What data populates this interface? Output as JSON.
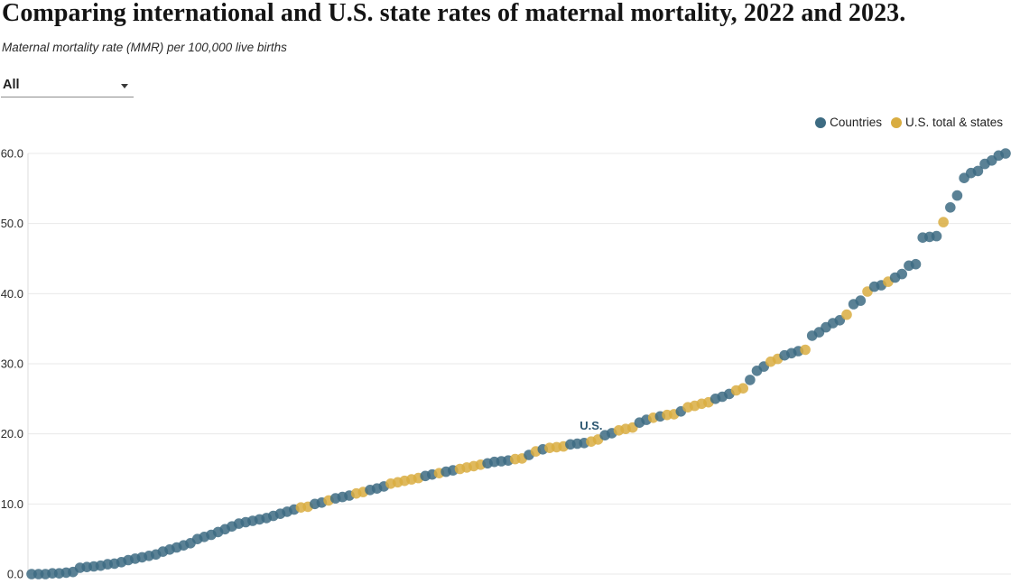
{
  "header": {
    "title": "Comparing international and U.S. state rates of maternal mortality, 2022 and 2023.",
    "subtitle": "Maternal mortality rate (MMR) per 100,000 live births"
  },
  "filter": {
    "value": "All"
  },
  "legend": [
    {
      "label": "Countries",
      "color": "#3d6b82",
      "key": "C"
    },
    {
      "label": "U.S. total & states",
      "color": "#d9ad41",
      "key": "U"
    }
  ],
  "chart_data": {
    "type": "scatter",
    "title": "Comparing international and U.S. state rates of maternal mortality, 2022 and 2023.",
    "xlabel": "",
    "ylabel": "Maternal mortality rate (MMR) per 100,000 live births",
    "ylim": [
      0,
      60
    ],
    "grid": true,
    "legend_position": "top-right",
    "yticks": [
      0,
      10,
      20,
      30,
      40,
      50,
      60
    ],
    "ytick_labels": [
      "0.0",
      "10.0",
      "20.0",
      "30.0",
      "40.0",
      "50.0",
      "60.0"
    ],
    "annotation": {
      "text": "U.S.",
      "point_index": 81
    },
    "series_note": "points sorted ascending by MMR; group C = Countries, U = U.S. total & states",
    "points": [
      [
        0,
        "C"
      ],
      [
        0,
        "C"
      ],
      [
        0,
        "C"
      ],
      [
        0.1,
        "C"
      ],
      [
        0.1,
        "C"
      ],
      [
        0.2,
        "C"
      ],
      [
        0.3,
        "C"
      ],
      [
        0.9,
        "C"
      ],
      [
        1,
        "C"
      ],
      [
        1.1,
        "C"
      ],
      [
        1.2,
        "C"
      ],
      [
        1.4,
        "C"
      ],
      [
        1.5,
        "C"
      ],
      [
        1.7,
        "C"
      ],
      [
        2,
        "C"
      ],
      [
        2.2,
        "C"
      ],
      [
        2.4,
        "C"
      ],
      [
        2.6,
        "C"
      ],
      [
        2.8,
        "C"
      ],
      [
        3.2,
        "C"
      ],
      [
        3.5,
        "C"
      ],
      [
        3.8,
        "C"
      ],
      [
        4.1,
        "C"
      ],
      [
        4.4,
        "C"
      ],
      [
        5,
        "C"
      ],
      [
        5.3,
        "C"
      ],
      [
        5.6,
        "C"
      ],
      [
        6,
        "C"
      ],
      [
        6.4,
        "C"
      ],
      [
        6.8,
        "C"
      ],
      [
        7.2,
        "C"
      ],
      [
        7.4,
        "C"
      ],
      [
        7.6,
        "C"
      ],
      [
        7.8,
        "C"
      ],
      [
        8,
        "C"
      ],
      [
        8.3,
        "C"
      ],
      [
        8.6,
        "C"
      ],
      [
        8.9,
        "C"
      ],
      [
        9.2,
        "C"
      ],
      [
        9.5,
        "U"
      ],
      [
        9.6,
        "U"
      ],
      [
        10,
        "C"
      ],
      [
        10.2,
        "C"
      ],
      [
        10.5,
        "U"
      ],
      [
        10.8,
        "C"
      ],
      [
        11,
        "C"
      ],
      [
        11.2,
        "C"
      ],
      [
        11.5,
        "U"
      ],
      [
        11.7,
        "U"
      ],
      [
        12,
        "C"
      ],
      [
        12.2,
        "C"
      ],
      [
        12.5,
        "C"
      ],
      [
        12.9,
        "U"
      ],
      [
        13.1,
        "U"
      ],
      [
        13.3,
        "U"
      ],
      [
        13.5,
        "U"
      ],
      [
        13.7,
        "U"
      ],
      [
        14,
        "C"
      ],
      [
        14.2,
        "C"
      ],
      [
        14.4,
        "U"
      ],
      [
        14.6,
        "C"
      ],
      [
        14.8,
        "C"
      ],
      [
        15,
        "U"
      ],
      [
        15.2,
        "U"
      ],
      [
        15.4,
        "U"
      ],
      [
        15.6,
        "U"
      ],
      [
        15.8,
        "C"
      ],
      [
        16,
        "C"
      ],
      [
        16.1,
        "C"
      ],
      [
        16.2,
        "C"
      ],
      [
        16.4,
        "U"
      ],
      [
        16.5,
        "U"
      ],
      [
        17,
        "C"
      ],
      [
        17.5,
        "U"
      ],
      [
        17.8,
        "C"
      ],
      [
        18,
        "U"
      ],
      [
        18.1,
        "U"
      ],
      [
        18.2,
        "U"
      ],
      [
        18.5,
        "C"
      ],
      [
        18.6,
        "C"
      ],
      [
        18.7,
        "C"
      ],
      [
        18.9,
        "U"
      ],
      [
        19.2,
        "U"
      ],
      [
        19.8,
        "C"
      ],
      [
        20.1,
        "C"
      ],
      [
        20.5,
        "U"
      ],
      [
        20.7,
        "U"
      ],
      [
        20.9,
        "U"
      ],
      [
        21.6,
        "C"
      ],
      [
        22,
        "C"
      ],
      [
        22.3,
        "U"
      ],
      [
        22.5,
        "C"
      ],
      [
        22.7,
        "U"
      ],
      [
        22.8,
        "U"
      ],
      [
        23.2,
        "C"
      ],
      [
        23.8,
        "U"
      ],
      [
        24,
        "U"
      ],
      [
        24.3,
        "U"
      ],
      [
        24.5,
        "U"
      ],
      [
        25,
        "C"
      ],
      [
        25.3,
        "C"
      ],
      [
        25.7,
        "C"
      ],
      [
        26.2,
        "U"
      ],
      [
        26.5,
        "U"
      ],
      [
        27.7,
        "C"
      ],
      [
        29,
        "C"
      ],
      [
        29.6,
        "C"
      ],
      [
        30.3,
        "U"
      ],
      [
        30.7,
        "U"
      ],
      [
        31.2,
        "C"
      ],
      [
        31.5,
        "C"
      ],
      [
        31.8,
        "C"
      ],
      [
        32,
        "U"
      ],
      [
        34,
        "C"
      ],
      [
        34.5,
        "C"
      ],
      [
        35.2,
        "C"
      ],
      [
        35.8,
        "C"
      ],
      [
        36.2,
        "C"
      ],
      [
        37,
        "U"
      ],
      [
        38.5,
        "C"
      ],
      [
        39,
        "C"
      ],
      [
        40.3,
        "U"
      ],
      [
        41,
        "C"
      ],
      [
        41.2,
        "C"
      ],
      [
        41.7,
        "U"
      ],
      [
        42.3,
        "C"
      ],
      [
        42.8,
        "C"
      ],
      [
        44,
        "C"
      ],
      [
        44.2,
        "C"
      ],
      [
        48,
        "C"
      ],
      [
        48.1,
        "C"
      ],
      [
        48.2,
        "C"
      ],
      [
        50.2,
        "U"
      ],
      [
        52.3,
        "C"
      ],
      [
        54,
        "C"
      ],
      [
        56.5,
        "C"
      ],
      [
        57.2,
        "C"
      ],
      [
        57.5,
        "C"
      ],
      [
        58.5,
        "C"
      ],
      [
        59,
        "C"
      ],
      [
        59.7,
        "C"
      ],
      [
        60,
        "C"
      ]
    ]
  },
  "colors": {
    "countries": "#3d6b82",
    "us_states": "#d9ad41",
    "gridline": "#e9e9e9",
    "axis_line": "#dddddd",
    "annotation": "#2b5670"
  }
}
